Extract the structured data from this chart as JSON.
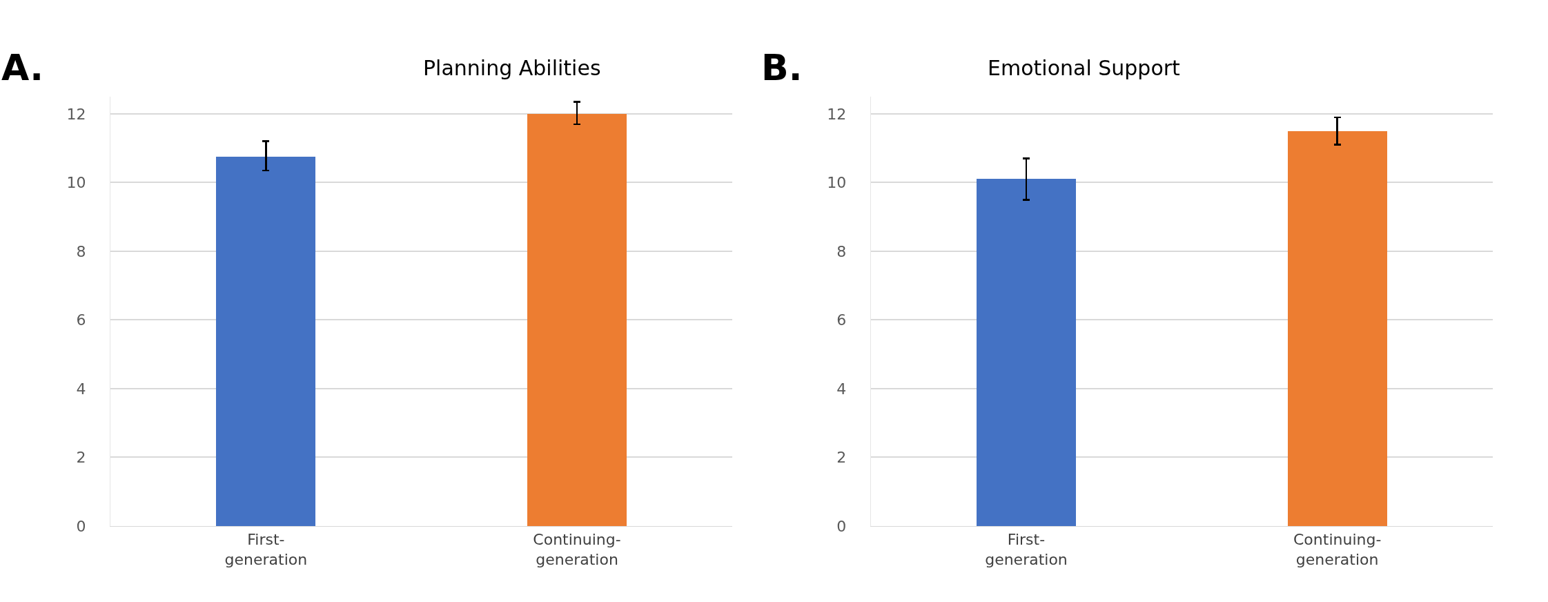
{
  "chart_data": [
    {
      "type": "bar",
      "title": "Planning Abilities",
      "annotations": [
        "A."
      ],
      "categories": [
        "First-generation",
        "Continuing-generation"
      ],
      "values": [
        10.75,
        12.0
      ],
      "colors": [
        "#4472c4",
        "#ed7d31"
      ],
      "errors": [
        [
          10.35,
          11.2
        ],
        [
          11.7,
          12.35
        ]
      ],
      "ylim": [
        0,
        12.5
      ],
      "yticks": [
        0,
        2,
        4,
        6,
        8,
        10,
        12
      ],
      "grid": "y"
    },
    {
      "type": "bar",
      "title": "Emotional Support",
      "annotations": [
        "B."
      ],
      "categories": [
        "First-generation",
        "Continuing-generation"
      ],
      "values": [
        10.1,
        11.5
      ],
      "colors": [
        "#4472c4",
        "#ed7d31"
      ],
      "errors": [
        [
          9.5,
          10.7
        ],
        [
          11.1,
          11.9
        ]
      ],
      "ylim": [
        0,
        12.5
      ],
      "yticks": [
        0,
        2,
        4,
        6,
        8,
        10,
        12
      ],
      "grid": "y"
    }
  ]
}
